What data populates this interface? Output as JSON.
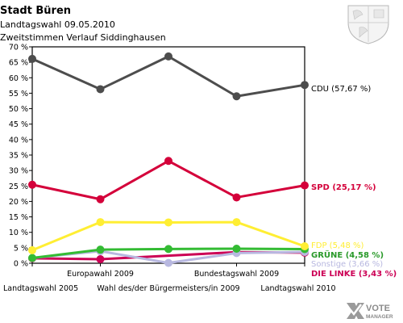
{
  "chart_data": {
    "type": "line",
    "title": "Stadt Büren",
    "subtitle": "Landtagswahl 09.05.2010",
    "subtitle2": "Zweitstimmen Verlauf Siddinghausen",
    "x": [
      "Landtagswahl 2005",
      "Europawahl 2009",
      "Wahl des/der Bürgermeisters/in 2009",
      "Bundestagswahl 2009",
      "Landtagswahl 2010"
    ],
    "ylim": [
      0,
      70
    ],
    "yticks": [
      "0 %",
      "5 %",
      "10 %",
      "15 %",
      "20 %",
      "25 %",
      "30 %",
      "35 %",
      "40 %",
      "45 %",
      "50 %",
      "55 %",
      "60 %",
      "65 %",
      "70 %"
    ],
    "grid": false,
    "series": [
      {
        "name": "CDU",
        "label": "CDU (57,67 %)",
        "color": "#4d4d4d",
        "label_color": "#000000",
        "values": [
          66.1,
          56.3,
          66.9,
          54.0,
          57.67
        ]
      },
      {
        "name": "SPD",
        "label": "SPD (25,17 %)",
        "color": "#d4003a",
        "label_color": "#d4003a",
        "values": [
          25.4,
          20.7,
          33.1,
          21.3,
          25.17
        ]
      },
      {
        "name": "FDP",
        "label": "FDP (5,48 %)",
        "color": "#ffee33",
        "label_color": "#ffee33",
        "values": [
          4.2,
          13.3,
          13.2,
          13.3,
          5.48
        ]
      },
      {
        "name": "GRÜNE",
        "label": "GRÜNE (4,58 %)",
        "color": "#33bb33",
        "label_color": "#2a9a2a",
        "values": [
          1.7,
          4.4,
          4.6,
          4.7,
          4.58
        ]
      },
      {
        "name": "Sonstige",
        "label": "Sonstige (3,66 %)",
        "color": "#b8b8e0",
        "label_color": "#b8b8e0",
        "values": [
          1.7,
          3.9,
          0.1,
          3.3,
          3.66
        ]
      },
      {
        "name": "DIE LINKE",
        "label": "DIE LINKE (3,43 %)",
        "color": "#cc0055",
        "label_color": "#cc0055",
        "values": [
          1.6,
          1.3,
          null,
          3.6,
          3.43
        ]
      }
    ]
  },
  "branding": {
    "logo_text": "VOTE MANAGER",
    "crest": "coat-of-arms-icon"
  }
}
